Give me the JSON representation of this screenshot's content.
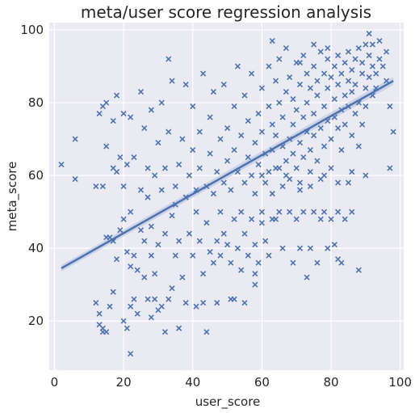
{
  "chart_data": {
    "type": "scatter",
    "title": "meta/user score regression analysis",
    "xlabel": "user_score",
    "ylabel": "meta_score",
    "xlim": [
      -1.5,
      101
    ],
    "ylim": [
      6.5,
      102
    ],
    "xticks": [
      0,
      20,
      40,
      60,
      80,
      100
    ],
    "yticks": [
      20,
      40,
      60,
      80,
      100
    ],
    "grid": true,
    "marker": "x",
    "colors": {
      "background": "#eaeaf2",
      "points": "#4c72b0",
      "line": "#4c72b0",
      "grid": "#ffffff",
      "ci_band": "#c5cde3"
    },
    "regression": {
      "x": [
        2,
        98
      ],
      "y": [
        34.5,
        86
      ]
    },
    "series": [
      {
        "values": [
          [
            2,
            63
          ],
          [
            6,
            70
          ],
          [
            6,
            59
          ],
          [
            12,
            25
          ],
          [
            12,
            57
          ],
          [
            13,
            19
          ],
          [
            13,
            22
          ],
          [
            13,
            77
          ],
          [
            14,
            18
          ],
          [
            14,
            17
          ],
          [
            14,
            57
          ],
          [
            14,
            79
          ],
          [
            15,
            17
          ],
          [
            15,
            80
          ],
          [
            15,
            68
          ],
          [
            15,
            43
          ],
          [
            16,
            43
          ],
          [
            16,
            24
          ],
          [
            17,
            28
          ],
          [
            17,
            42
          ],
          [
            17,
            75
          ],
          [
            17,
            62
          ],
          [
            18,
            61
          ],
          [
            18,
            37
          ],
          [
            18,
            82
          ],
          [
            19,
            45
          ],
          [
            19,
            65
          ],
          [
            20,
            20
          ],
          [
            20,
            48
          ],
          [
            20,
            77
          ],
          [
            20,
            57
          ],
          [
            21,
            18
          ],
          [
            21,
            63
          ],
          [
            21,
            39
          ],
          [
            22,
            35
          ],
          [
            22,
            11
          ],
          [
            22,
            24
          ],
          [
            22,
            76
          ],
          [
            22,
            50
          ],
          [
            23,
            26
          ],
          [
            23,
            38
          ],
          [
            23,
            65
          ],
          [
            24,
            34
          ],
          [
            24,
            22
          ],
          [
            25,
            83
          ],
          [
            25,
            45
          ],
          [
            25,
            56
          ],
          [
            26,
            32
          ],
          [
            26,
            42
          ],
          [
            26,
            73
          ],
          [
            27,
            26
          ],
          [
            27,
            54
          ],
          [
            27,
            62
          ],
          [
            28,
            21
          ],
          [
            28,
            38
          ],
          [
            28,
            46
          ],
          [
            28,
            78
          ],
          [
            29,
            26
          ],
          [
            29,
            33
          ],
          [
            29,
            60
          ],
          [
            30,
            41
          ],
          [
            30,
            23
          ],
          [
            30,
            69
          ],
          [
            31,
            80
          ],
          [
            31,
            56
          ],
          [
            31,
            24
          ],
          [
            32,
            17
          ],
          [
            32,
            44
          ],
          [
            32,
            62
          ],
          [
            33,
            92
          ],
          [
            33,
            72
          ],
          [
            33,
            26
          ],
          [
            34,
            29
          ],
          [
            34,
            49
          ],
          [
            34,
            86
          ],
          [
            35,
            57
          ],
          [
            35,
            38
          ],
          [
            35,
            52
          ],
          [
            36,
            18
          ],
          [
            36,
            63
          ],
          [
            36,
            42
          ],
          [
            37,
            70
          ],
          [
            37,
            32
          ],
          [
            38,
            54
          ],
          [
            38,
            85
          ],
          [
            38,
            25
          ],
          [
            39,
            60
          ],
          [
            39,
            44
          ],
          [
            40,
            38
          ],
          [
            40,
            67
          ],
          [
            40,
            79
          ],
          [
            41,
            24
          ],
          [
            41,
            50
          ],
          [
            41,
            56
          ],
          [
            42,
            42
          ],
          [
            42,
            72
          ],
          [
            42,
            62
          ],
          [
            43,
            25
          ],
          [
            43,
            33
          ],
          [
            43,
            88
          ],
          [
            44,
            17
          ],
          [
            44,
            57
          ],
          [
            44,
            47
          ],
          [
            45,
            39
          ],
          [
            45,
            66
          ],
          [
            45,
            76
          ],
          [
            46,
            36
          ],
          [
            46,
            55
          ],
          [
            46,
            83
          ],
          [
            47,
            42
          ],
          [
            47,
            25
          ],
          [
            47,
            61
          ],
          [
            48,
            50
          ],
          [
            48,
            70
          ],
          [
            48,
            38
          ],
          [
            49,
            58
          ],
          [
            49,
            85
          ],
          [
            49,
            44
          ],
          [
            50,
            41
          ],
          [
            50,
            64
          ],
          [
            50,
            73
          ],
          [
            51,
            26
          ],
          [
            51,
            56
          ],
          [
            51,
            36
          ],
          [
            52,
            67
          ],
          [
            52,
            48
          ],
          [
            52,
            79
          ],
          [
            53,
            40
          ],
          [
            53,
            61
          ],
          [
            53,
            90
          ],
          [
            54,
            50
          ],
          [
            54,
            71
          ],
          [
            54,
            34
          ],
          [
            55,
            58
          ],
          [
            55,
            44
          ],
          [
            55,
            82
          ],
          [
            56,
            65
          ],
          [
            56,
            38
          ],
          [
            56,
            75
          ],
          [
            57,
            60
          ],
          [
            57,
            48
          ],
          [
            57,
            88
          ],
          [
            58,
            41
          ],
          [
            58,
            69
          ],
          [
            58,
            55
          ],
          [
            59,
            77
          ],
          [
            59,
            63
          ],
          [
            59,
            36
          ],
          [
            60,
            50
          ],
          [
            60,
            72
          ],
          [
            60,
            84
          ],
          [
            61,
            58
          ],
          [
            61,
            66
          ],
          [
            61,
            42
          ],
          [
            62,
            79
          ],
          [
            62,
            61
          ],
          [
            62,
            90
          ],
          [
            63,
            55
          ],
          [
            63,
            74
          ],
          [
            63,
            67
          ],
          [
            64,
            86
          ],
          [
            64,
            48
          ],
          [
            64,
            71
          ],
          [
            65,
            62
          ],
          [
            65,
            80
          ],
          [
            65,
            92
          ],
          [
            66,
            57
          ],
          [
            66,
            76
          ],
          [
            66,
            68
          ],
          [
            67,
            83
          ],
          [
            67,
            64
          ],
          [
            67,
            95
          ],
          [
            68,
            70
          ],
          [
            68,
            59
          ],
          [
            68,
            87
          ],
          [
            69,
            74
          ],
          [
            69,
            66
          ],
          [
            69,
            81
          ],
          [
            70,
            91
          ],
          [
            70,
            62
          ],
          [
            70,
            78
          ],
          [
            71,
            69
          ],
          [
            71,
            85
          ],
          [
            71,
            56
          ],
          [
            72,
            76
          ],
          [
            72,
            93
          ],
          [
            72,
            65
          ],
          [
            73,
            80
          ],
          [
            73,
            72
          ],
          [
            73,
            88
          ],
          [
            74,
            67
          ],
          [
            74,
            84
          ],
          [
            74,
            61
          ],
          [
            75,
            90
          ],
          [
            75,
            77
          ],
          [
            75,
            71
          ],
          [
            76,
            86
          ],
          [
            76,
            64
          ],
          [
            76,
            82
          ],
          [
            77,
            73
          ],
          [
            77,
            94
          ],
          [
            77,
            59
          ],
          [
            78,
            79
          ],
          [
            78,
            68
          ],
          [
            78,
            88
          ],
          [
            79,
            84
          ],
          [
            79,
            75
          ],
          [
            79,
            92
          ],
          [
            80,
            70
          ],
          [
            80,
            87
          ],
          [
            80,
            62
          ],
          [
            81,
            81
          ],
          [
            81,
            90
          ],
          [
            81,
            76
          ],
          [
            82,
            73
          ],
          [
            82,
            85
          ],
          [
            82,
            93
          ],
          [
            83,
            78
          ],
          [
            83,
            67
          ],
          [
            83,
            88
          ],
          [
            84,
            82
          ],
          [
            84,
            91
          ],
          [
            84,
            74
          ],
          [
            85,
            86
          ],
          [
            85,
            79
          ],
          [
            85,
            94
          ],
          [
            86,
            71
          ],
          [
            86,
            89
          ],
          [
            86,
            83
          ],
          [
            87,
            92
          ],
          [
            87,
            77
          ],
          [
            87,
            85
          ],
          [
            88,
            80
          ],
          [
            88,
            95
          ],
          [
            88,
            68
          ],
          [
            89,
            88
          ],
          [
            89,
            74
          ],
          [
            89,
            91
          ],
          [
            90,
            84
          ],
          [
            90,
            96
          ],
          [
            90,
            79
          ],
          [
            91,
            87
          ],
          [
            91,
            93
          ],
          [
            91,
            99
          ],
          [
            92,
            90
          ],
          [
            92,
            82
          ],
          [
            97,
            79
          ],
          [
            97,
            62
          ],
          [
            98,
            72
          ],
          [
            65,
            50
          ],
          [
            68,
            50
          ],
          [
            72,
            50
          ],
          [
            75,
            50
          ],
          [
            78,
            50
          ],
          [
            82,
            50
          ],
          [
            86,
            50
          ],
          [
            60,
            47
          ],
          [
            63,
            48
          ],
          [
            70,
            48
          ],
          [
            77,
            48
          ],
          [
            80,
            48
          ],
          [
            84,
            48
          ],
          [
            66,
            40
          ],
          [
            71,
            40
          ],
          [
            74,
            40
          ],
          [
            79,
            40
          ],
          [
            62,
            38
          ],
          [
            69,
            36
          ],
          [
            76,
            36
          ],
          [
            82,
            37
          ],
          [
            83,
            36
          ],
          [
            88,
            34
          ],
          [
            58,
            33
          ],
          [
            73,
            32
          ],
          [
            81,
            41
          ],
          [
            58,
            30
          ],
          [
            55,
            25
          ],
          [
            52,
            26
          ],
          [
            64,
            62
          ],
          [
            67,
            60
          ],
          [
            71,
            58
          ],
          [
            74,
            57
          ],
          [
            78,
            60
          ],
          [
            82,
            58
          ],
          [
            86,
            61
          ],
          [
            60,
            60
          ],
          [
            85,
            58
          ],
          [
            90,
            60
          ],
          [
            93,
            88
          ],
          [
            94,
            92
          ],
          [
            95,
            90
          ],
          [
            96,
            86
          ],
          [
            93,
            84
          ],
          [
            96,
            94
          ],
          [
            92,
            96
          ],
          [
            94,
            97
          ],
          [
            63,
            97
          ],
          [
            75,
            96
          ],
          [
            79,
            95
          ],
          [
            71,
            91
          ]
        ]
      }
    ]
  }
}
